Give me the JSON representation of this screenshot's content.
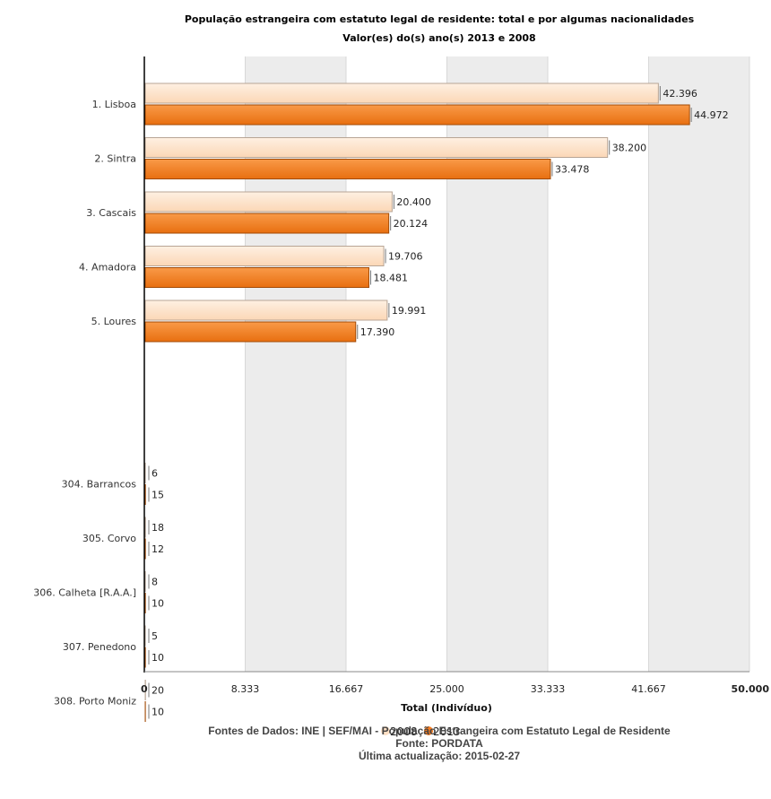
{
  "chart_data": {
    "type": "bar",
    "orientation": "horizontal",
    "title": "População estrangeira com estatuto legal de residente: total e por algumas nacionalidades",
    "subtitle": "Valor(es) do(s) ano(s) 2013 e 2008",
    "categories": [
      "1. Lisboa",
      "2. Sintra",
      "3. Cascais",
      "4. Amadora",
      "5. Loures",
      "304. Barrancos",
      "305. Corvo",
      "306. Calheta [R.A.A.]",
      "307. Penedono",
      "308. Porto Moniz"
    ],
    "series": [
      {
        "name": "2008",
        "color": "#fde0c5",
        "values": [
          42396,
          38200,
          20400,
          19706,
          19991,
          6,
          18,
          8,
          5,
          20
        ],
        "labels": [
          "42.396",
          "38.200",
          "20.400",
          "19.706",
          "19.991",
          "6",
          "18",
          "8",
          "5",
          "20"
        ]
      },
      {
        "name": "2013",
        "color": "#f47b20",
        "values": [
          44972,
          33478,
          20124,
          18481,
          17390,
          15,
          12,
          10,
          10,
          10
        ],
        "labels": [
          "44.972",
          "33.478",
          "20.124",
          "18.481",
          "17.390",
          "15",
          "12",
          "10",
          "10",
          "10"
        ]
      }
    ],
    "xlim": [
      0,
      50000
    ],
    "xticks": [
      0,
      8333,
      16667,
      25000,
      33333,
      41667,
      50000
    ],
    "xtick_labels": [
      "0",
      "8.333",
      "16.667",
      "25.000",
      "33.333",
      "41.667",
      "50.000"
    ],
    "xlabel": "Total (Indivíduo)",
    "ylabel": "",
    "gap_after_index": 4,
    "grid": "alternating vertical bands",
    "legend": "bottom-center"
  },
  "source": {
    "line1": "Fontes de Dados: INE | SEF/MAI - População Estrangeira com Estatuto Legal de Residente",
    "line2": "Fonte: PORDATA",
    "line3": "Última actualização: 2015-02-27"
  }
}
